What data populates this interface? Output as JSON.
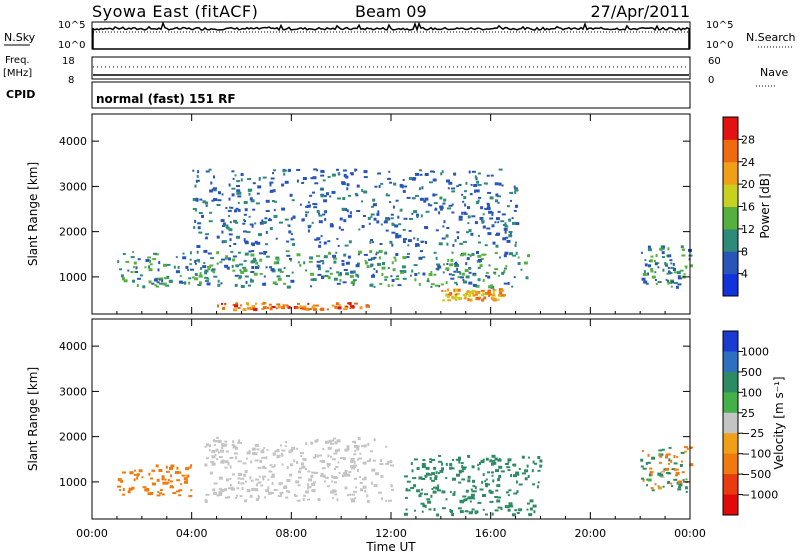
{
  "header": {
    "station": "Syowa East (fitACF)",
    "beam": "Beam 09",
    "date": "27/Apr/2011"
  },
  "noise_panel": {
    "left_label": "N.Sky",
    "right_label": "N.Search",
    "left_ticks": [
      "10^5",
      "10^0"
    ],
    "right_ticks": [
      "10^5",
      "10^0"
    ]
  },
  "freq_panel": {
    "left_label_1": "Freq.",
    "left_label_2": "[MHz]",
    "right_label": "Nave",
    "left_ticks": [
      "18",
      "8"
    ],
    "right_ticks": [
      "60",
      "0"
    ]
  },
  "cpid_panel": {
    "label": "CPID",
    "text": "normal (fast) 151 RF"
  },
  "x_axis": {
    "label": "Time UT",
    "ticks": [
      "00:00",
      "04:00",
      "08:00",
      "12:00",
      "16:00",
      "20:00",
      "00:00"
    ]
  },
  "colors": {
    "power": [
      "#1432dc",
      "#2a55b8",
      "#2f8a7a",
      "#55b040",
      "#c8d020",
      "#f0a018",
      "#f06a10",
      "#e21212"
    ],
    "velocity_pos": [
      "#1a3ad2",
      "#2f6fc0",
      "#2e8a64",
      "#44b04a"
    ],
    "velocity_gs": "#c4c4c4",
    "velocity_neg": [
      "#f0a018",
      "#f07a10",
      "#ea3a10",
      "#e00a0a"
    ]
  },
  "chart_data": [
    {
      "type": "heatmap",
      "panel": "Power",
      "xlabel": "",
      "ylabel": "Slant Range [km]",
      "x_range": [
        "00:00",
        "24:00"
      ],
      "y_ticks": [
        1000,
        2000,
        3000,
        4000
      ],
      "ylim": [
        180,
        4600
      ],
      "colorbar_label": "Power [dB]",
      "colorbar_ticks": [
        4,
        8,
        12,
        16,
        20,
        24,
        28
      ],
      "features": [
        {
          "time_range": [
            "01:00",
            "17:30"
          ],
          "range_km": [
            800,
            1600
          ],
          "power_db": [
            4,
            16
          ]
        },
        {
          "time_range": [
            "05:00",
            "11:00"
          ],
          "range_km": [
            300,
            450
          ],
          "power_db": [
            20,
            30
          ]
        },
        {
          "time_range": [
            "14:00",
            "16:30"
          ],
          "range_km": [
            500,
            750
          ],
          "power_db": [
            16,
            28
          ]
        },
        {
          "time_range": [
            "04:00",
            "17:00"
          ],
          "range_km": [
            1700,
            3400
          ],
          "power_db": [
            4,
            10
          ]
        },
        {
          "time_range": [
            "22:00",
            "24:00"
          ],
          "range_km": [
            800,
            1700
          ],
          "power_db": [
            4,
            16
          ]
        }
      ]
    },
    {
      "type": "heatmap",
      "panel": "Velocity",
      "xlabel": "Time UT",
      "ylabel": "Slant Range [km]",
      "x_range": [
        "00:00",
        "24:00"
      ],
      "y_ticks": [
        1000,
        2000,
        3000,
        4000
      ],
      "ylim": [
        180,
        4600
      ],
      "colorbar_label": "Velocity [m s⁻¹]",
      "colorbar_ticks": [
        "1000",
        "500",
        "100",
        "25",
        "−25",
        "−100",
        "−500",
        "−1000"
      ],
      "features": [
        {
          "time_range": [
            "01:00",
            "04:00"
          ],
          "range_km": [
            700,
            1400
          ],
          "velocity_ms": [
            -500,
            -100
          ]
        },
        {
          "time_range": [
            "04:30",
            "12:00"
          ],
          "range_km": [
            600,
            2000
          ],
          "velocity_ms": [
            -25,
            25
          ]
        },
        {
          "time_range": [
            "12:30",
            "18:00"
          ],
          "range_km": [
            300,
            1600
          ],
          "velocity_ms": [
            100,
            500
          ]
        },
        {
          "time_range": [
            "22:00",
            "24:00"
          ],
          "range_km": [
            800,
            1800
          ],
          "velocity_ms": [
            -500,
            500
          ]
        }
      ]
    }
  ]
}
